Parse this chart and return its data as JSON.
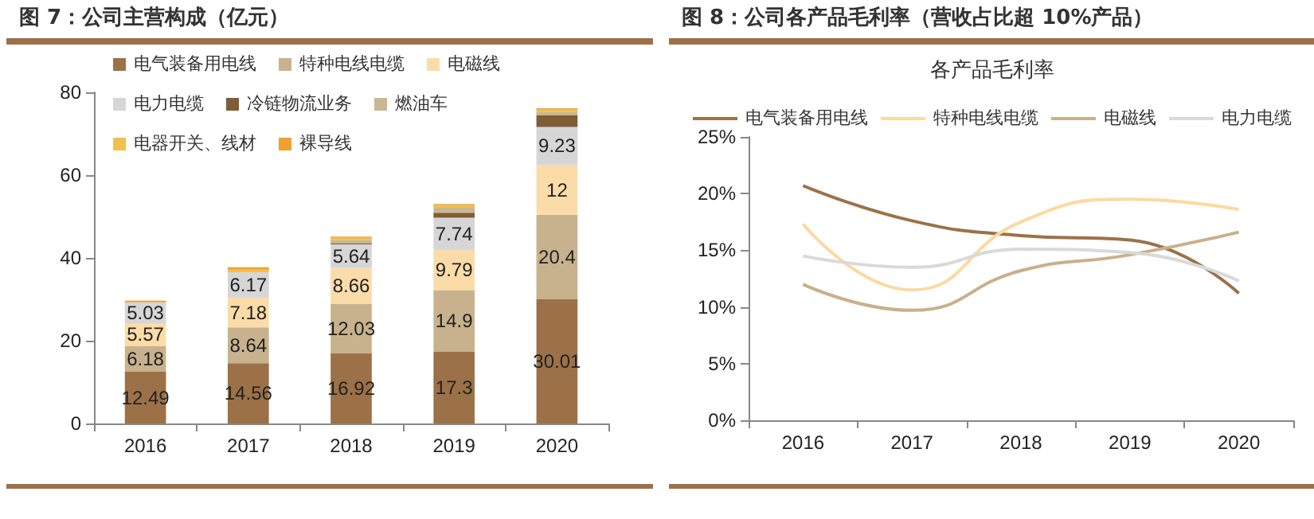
{
  "chart_data": [
    {
      "type": "bar",
      "title": "图 7：公司主营构成（亿元）",
      "stacked": true,
      "categories": [
        "2016",
        "2017",
        "2018",
        "2019",
        "2020"
      ],
      "ylim": [
        0,
        80
      ],
      "yticks": [
        0,
        20,
        40,
        60,
        80
      ],
      "grid": false,
      "legend": "top left",
      "series": [
        {
          "name": "电气装备用电线",
          "color": "#9c7148",
          "values": [
            12.49,
            14.56,
            16.92,
            17.3,
            30.01
          ],
          "value_labels": [
            "12.49",
            "14.56",
            "16.92",
            "17.3",
            "30.01"
          ]
        },
        {
          "name": "特种电线电缆",
          "color": "#c8b28d",
          "values": [
            6.18,
            8.64,
            12.03,
            14.9,
            20.4
          ],
          "value_labels": [
            "6.18",
            "8.64",
            "12.03",
            "14.9",
            "20.4"
          ]
        },
        {
          "name": "电磁线",
          "color": "#fbdca8",
          "values": [
            5.57,
            7.18,
            8.66,
            9.79,
            12
          ],
          "value_labels": [
            "5.57",
            "7.18",
            "8.66",
            "9.79",
            "12"
          ]
        },
        {
          "name": "电力电缆",
          "color": "#d6d6d6",
          "values": [
            5.03,
            6.17,
            5.64,
            7.74,
            9.23
          ],
          "value_labels": [
            "5.03",
            "6.17",
            "5.64",
            "7.74",
            "9.23"
          ]
        },
        {
          "name": "冷链物流业务",
          "color": "#7f5d36",
          "values": [
            null,
            null,
            0.3,
            1.2,
            2.8
          ]
        },
        {
          "name": "燃油车",
          "color": "#c9b793",
          "values": [
            null,
            null,
            0.8,
            1.2,
            0.9
          ]
        },
        {
          "name": "电器开关、线材",
          "color": "#f0c050",
          "values": [
            null,
            0.6,
            0.5,
            0.6,
            0.5
          ]
        },
        {
          "name": "裸导线",
          "color": "#f0a030",
          "values": [
            0.4,
            0.6,
            0.3,
            0.3,
            0.3
          ]
        }
      ]
    },
    {
      "type": "line",
      "title": "图 8：公司各产品毛利率（营收占比超 10%产品）",
      "subtitle": "各产品毛利率",
      "categories": [
        "2016",
        "2017",
        "2018",
        "2019",
        "2020"
      ],
      "ylim": [
        0,
        25
      ],
      "yticks": [
        {
          "value": 0,
          "label": "0%"
        },
        {
          "value": 5,
          "label": "5%"
        },
        {
          "value": 10,
          "label": "10%"
        },
        {
          "value": 15,
          "label": "15%"
        },
        {
          "value": 20,
          "label": "20%"
        },
        {
          "value": 25,
          "label": "25%"
        }
      ],
      "grid": false,
      "legend": "top",
      "marker": "none",
      "line_style": "solid",
      "series": [
        {
          "name": "电气装备用电线",
          "color": "#9c7148",
          "values": [
            20.7,
            17.6,
            16.3,
            15.9,
            11.2
          ]
        },
        {
          "name": "特种电线电缆",
          "color": "#fdd9a0",
          "values": [
            17.3,
            11.5,
            17.5,
            19.5,
            18.6
          ]
        },
        {
          "name": "电磁线",
          "color": "#c8b08a",
          "values": [
            12.0,
            9.7,
            13.2,
            14.6,
            16.6
          ]
        },
        {
          "name": "电力电缆",
          "color": "#d9d9d9",
          "values": [
            14.5,
            13.5,
            15.1,
            14.8,
            12.3
          ]
        }
      ]
    }
  ]
}
